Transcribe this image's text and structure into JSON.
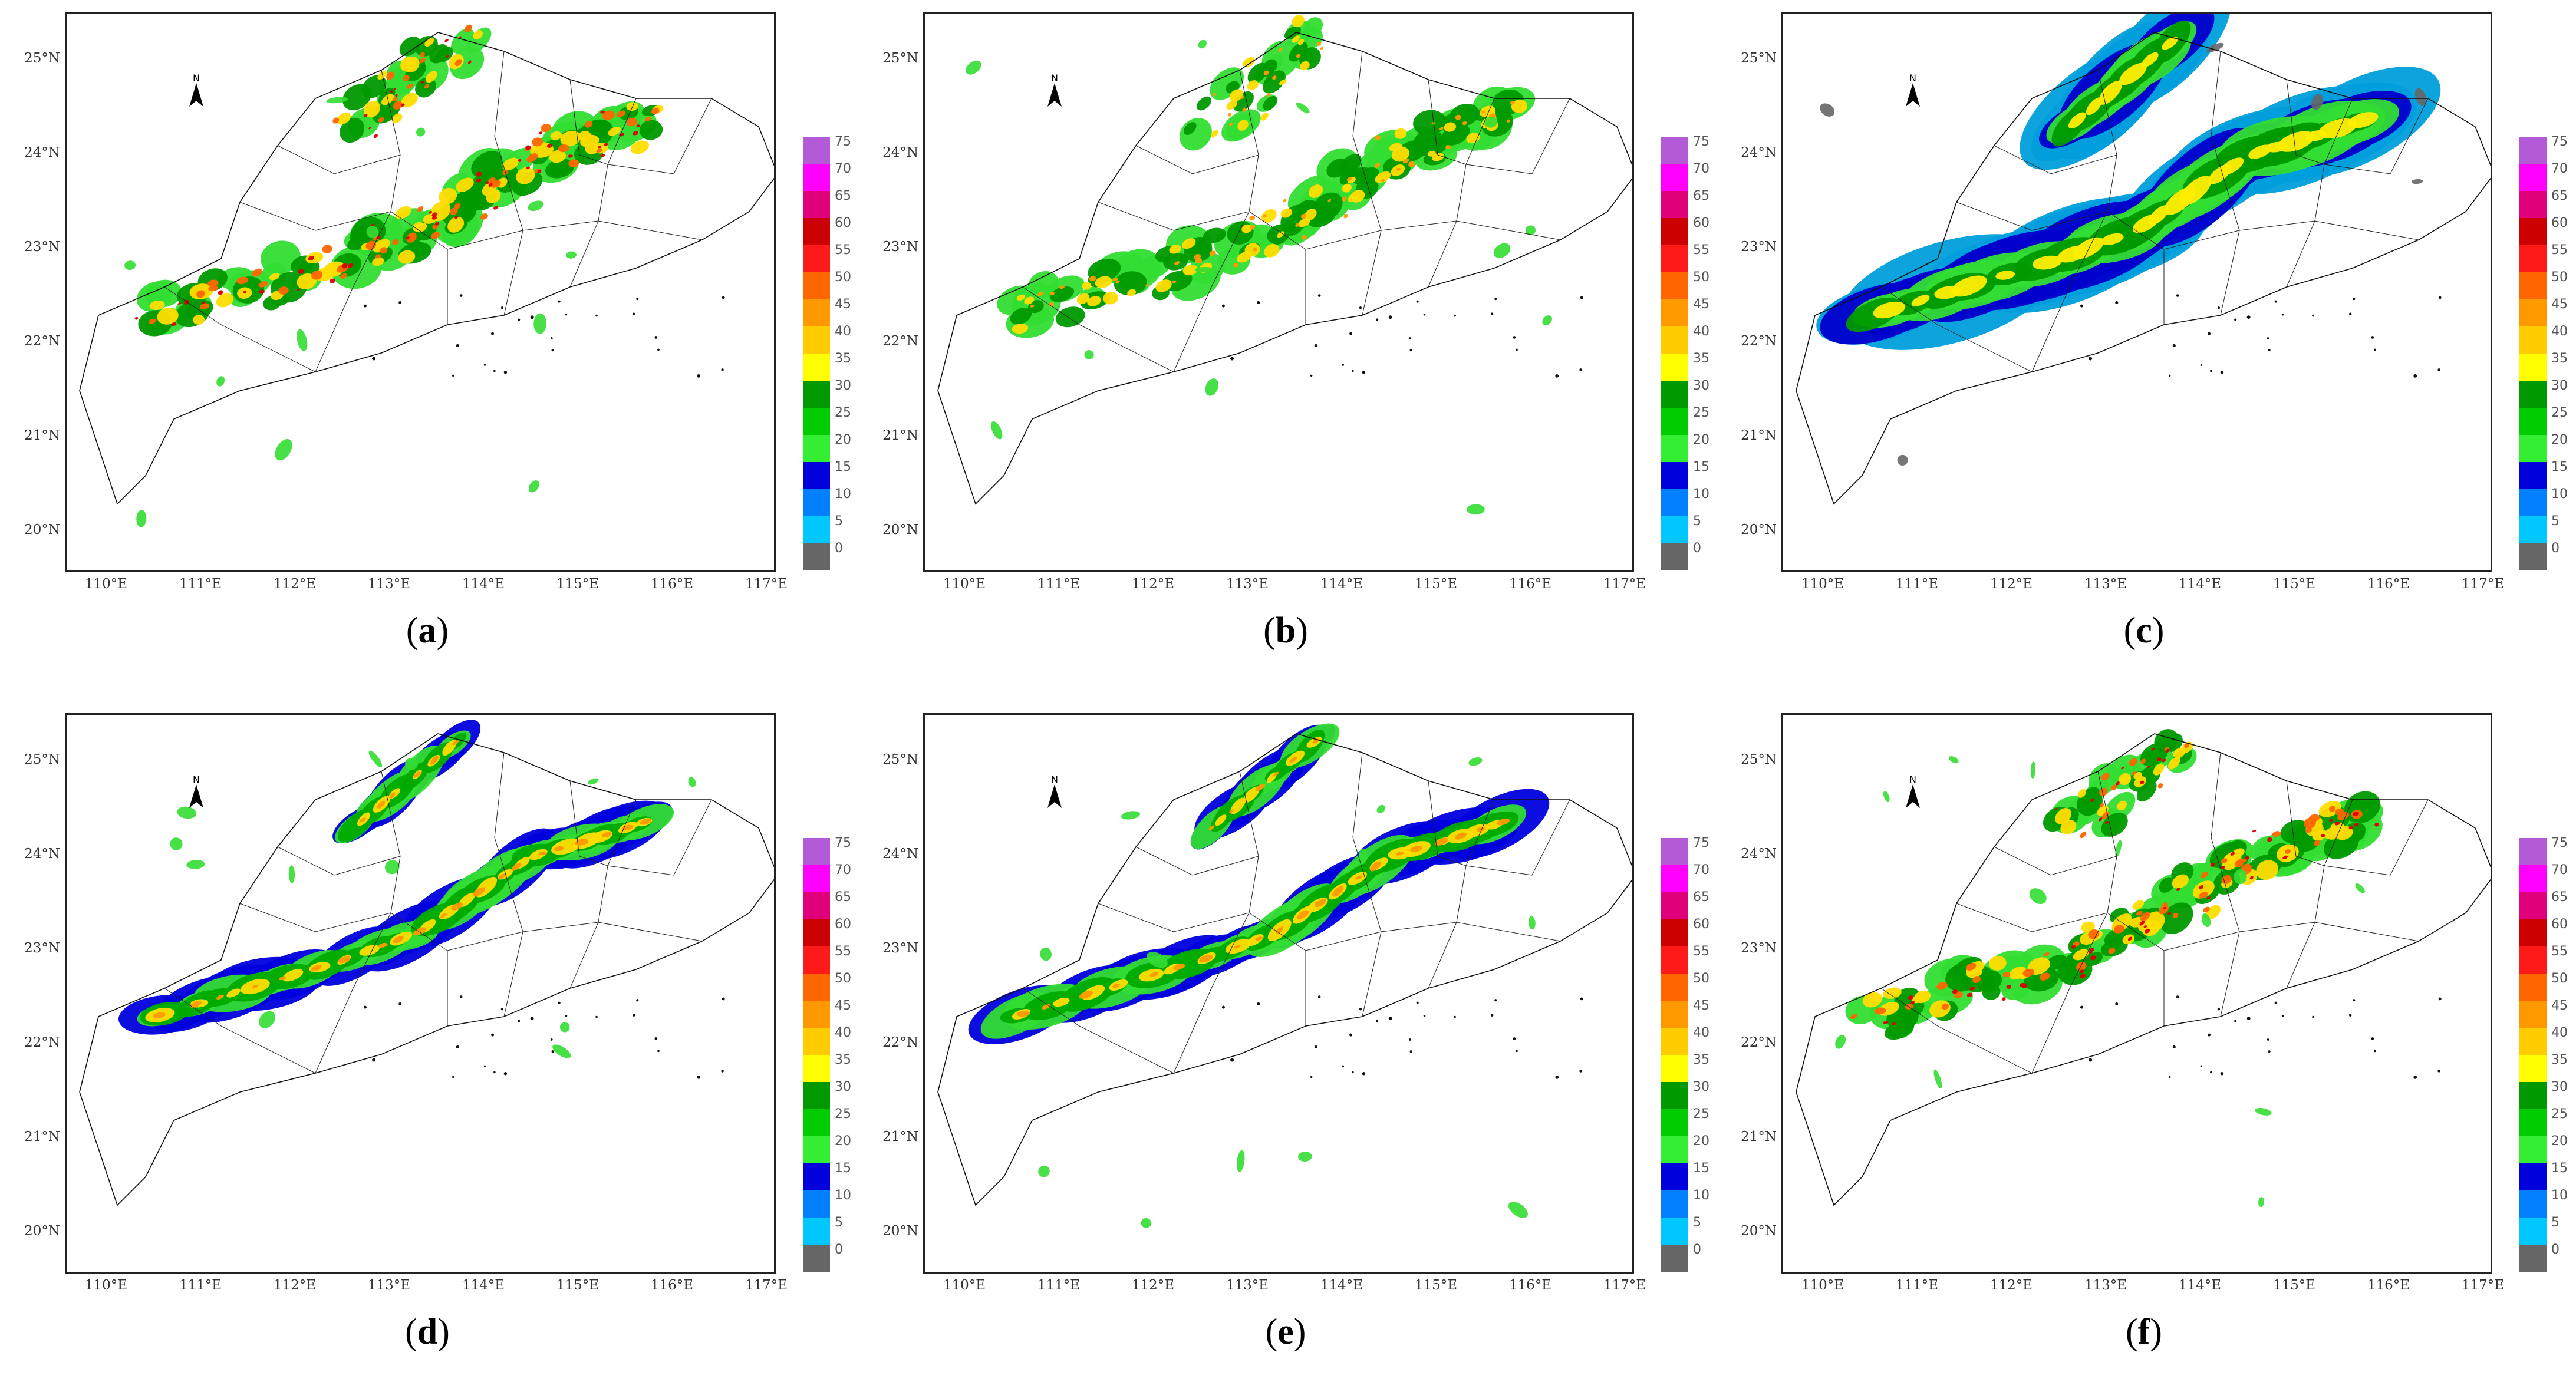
{
  "colorbar": {
    "labels": [
      "75",
      "70",
      "65",
      "60",
      "55",
      "50",
      "45",
      "40",
      "35",
      "30",
      "25",
      "20",
      "15",
      "10",
      "5",
      "0"
    ],
    "colors": [
      "#b35bd6",
      "#ff00ff",
      "#e0007a",
      "#cc0000",
      "#ff1a1a",
      "#ff6600",
      "#ff9900",
      "#ffcc00",
      "#ffff00",
      "#009900",
      "#00cc00",
      "#33ee33",
      "#0000dd",
      "#0080ff",
      "#00c8ff",
      "#666666"
    ]
  },
  "axes": {
    "lat_labels": [
      "25°N",
      "24°N",
      "23°N",
      "22°N",
      "21°N",
      "20°N"
    ],
    "lon_labels": [
      "110°E",
      "111°E",
      "112°E",
      "113°E",
      "114°E",
      "115°E",
      "116°E",
      "117°E"
    ]
  },
  "compass_label": "N",
  "panels": [
    {
      "letter": "a",
      "style": "scattered"
    },
    {
      "letter": "b",
      "style": "sparse"
    },
    {
      "letter": "c",
      "style": "broad"
    },
    {
      "letter": "d",
      "style": "smooth"
    },
    {
      "letter": "e",
      "style": "smooth"
    },
    {
      "letter": "f",
      "style": "scattered"
    }
  ]
}
